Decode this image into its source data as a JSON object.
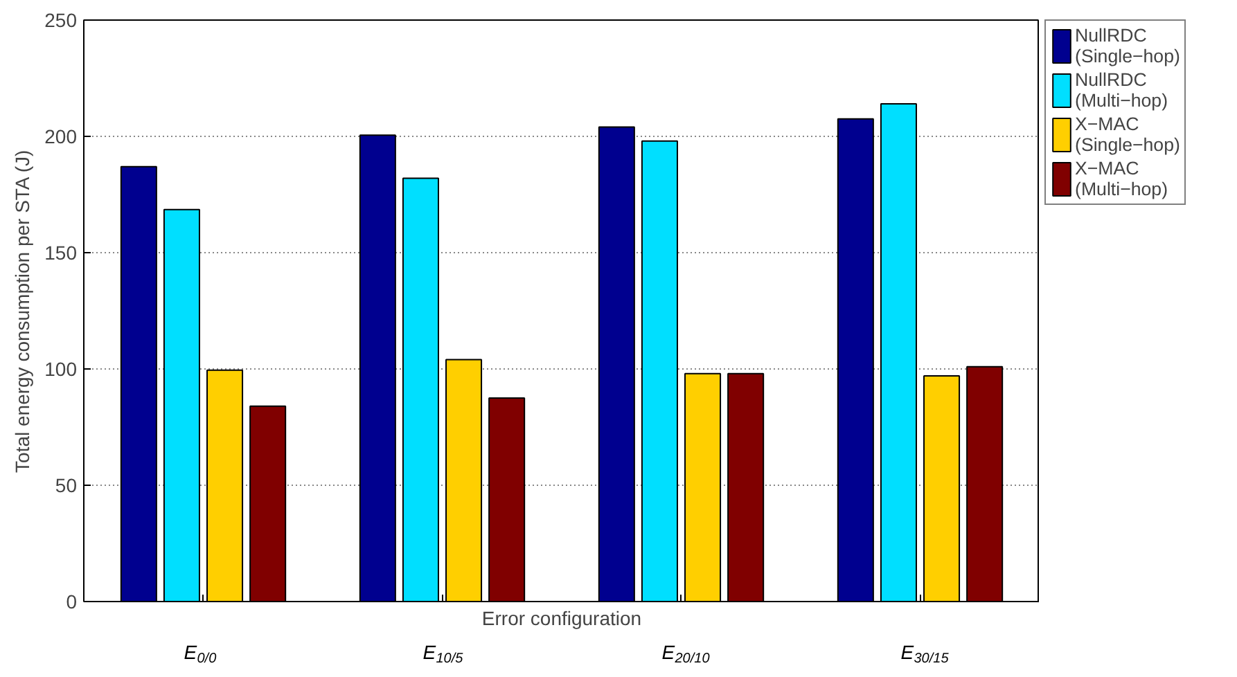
{
  "chart_data": {
    "type": "bar",
    "xlabel": "Error configuration",
    "ylabel": "Total energy consumption per STA (J)",
    "categories": [
      "E$_{0/0}$",
      "E$_{10/5}$",
      "E$_{20/10}$",
      "E$_{30/15}$"
    ],
    "series": [
      {
        "name": "NullRDC (Single−hop)",
        "color": "#00008f",
        "values": [
          187,
          200.5,
          204,
          207.5
        ]
      },
      {
        "name": "NullRDC (Multi−hop)",
        "color": "#00dfff",
        "values": [
          168.5,
          182,
          198,
          214
        ]
      },
      {
        "name": "X−MAC (Single−hop)",
        "color": "#ffcf00",
        "values": [
          99.5,
          104,
          98,
          97
        ]
      },
      {
        "name": "X−MAC (Multi−hop)",
        "color": "#800000",
        "values": [
          84,
          87.5,
          98,
          101
        ]
      }
    ],
    "ylim": [
      0,
      250
    ],
    "yticks": [
      0,
      50,
      100,
      150,
      200,
      250
    ],
    "grid": "y",
    "legend": "right"
  }
}
